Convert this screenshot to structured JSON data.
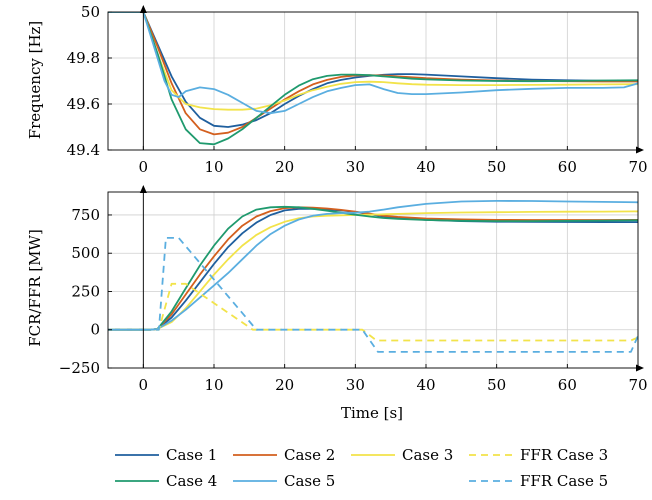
{
  "chart_data": [
    {
      "type": "line",
      "ylabel": "Frequency [Hz]",
      "xlabel": "",
      "xlim": [
        -5,
        70
      ],
      "ylim": [
        49.4,
        50
      ],
      "xticks": [
        0,
        10,
        20,
        30,
        40,
        50,
        60,
        70
      ],
      "yticks": [
        49.4,
        49.6,
        49.8,
        50
      ],
      "ytick_labels": [
        "49.4",
        "49.6",
        "49.8",
        "50"
      ],
      "grid": true,
      "series": [
        {
          "name": "Case 1",
          "color": "#1f5f9e",
          "dash": "solid",
          "x": [
            -5,
            0,
            2,
            4,
            6,
            8,
            10,
            12,
            14,
            16,
            18,
            20,
            22,
            24,
            26,
            28,
            30,
            32,
            34,
            36,
            38,
            40,
            45,
            50,
            55,
            60,
            65,
            70
          ],
          "y": [
            50,
            50,
            49.86,
            49.72,
            49.61,
            49.54,
            49.505,
            49.5,
            49.51,
            49.53,
            49.56,
            49.6,
            49.635,
            49.665,
            49.69,
            49.705,
            49.715,
            49.722,
            49.727,
            49.73,
            49.73,
            49.728,
            49.72,
            49.712,
            49.706,
            49.703,
            49.701,
            49.7
          ]
        },
        {
          "name": "Case 2",
          "color": "#d35f1e",
          "dash": "solid",
          "x": [
            -5,
            0,
            2,
            4,
            6,
            8,
            10,
            12,
            14,
            16,
            18,
            20,
            22,
            24,
            26,
            28,
            30,
            32,
            34,
            36,
            38,
            40,
            45,
            50,
            55,
            60,
            65,
            70
          ],
          "y": [
            50,
            50,
            49.85,
            49.69,
            49.56,
            49.49,
            49.468,
            49.475,
            49.5,
            49.54,
            49.58,
            49.62,
            49.655,
            49.685,
            49.705,
            49.718,
            49.724,
            49.725,
            49.724,
            49.72,
            49.716,
            49.712,
            49.706,
            49.702,
            49.7,
            49.699,
            49.698,
            49.698
          ]
        },
        {
          "name": "Case 3",
          "color": "#f2e34a",
          "dash": "solid",
          "x": [
            -5,
            0,
            2,
            4,
            6,
            8,
            10,
            12,
            14,
            16,
            18,
            20,
            22,
            24,
            26,
            28,
            30,
            32,
            34,
            36,
            38,
            40,
            45,
            50,
            55,
            60,
            65,
            70
          ],
          "y": [
            50,
            50,
            49.82,
            49.66,
            49.6,
            49.585,
            49.578,
            49.575,
            49.575,
            49.58,
            49.595,
            49.615,
            49.64,
            49.66,
            49.675,
            49.688,
            49.695,
            49.697,
            49.695,
            49.69,
            49.686,
            49.684,
            49.682,
            49.682,
            49.683,
            49.684,
            49.685,
            49.686
          ]
        },
        {
          "name": "Case 4",
          "color": "#1f9a6e",
          "dash": "solid",
          "x": [
            -5,
            0,
            2,
            4,
            6,
            8,
            10,
            12,
            14,
            16,
            18,
            20,
            22,
            24,
            26,
            28,
            30,
            32,
            34,
            36,
            38,
            40,
            45,
            50,
            55,
            60,
            65,
            70
          ],
          "y": [
            50,
            50,
            49.82,
            49.62,
            49.49,
            49.43,
            49.425,
            49.45,
            49.49,
            49.54,
            49.59,
            49.64,
            49.68,
            49.708,
            49.722,
            49.728,
            49.728,
            49.725,
            49.72,
            49.715,
            49.71,
            49.707,
            49.702,
            49.7,
            49.699,
            49.7,
            49.702,
            49.703
          ]
        },
        {
          "name": "Case 5",
          "color": "#5aaee0",
          "dash": "solid",
          "x": [
            -5,
            0,
            2,
            3,
            4,
            5,
            6,
            8,
            10,
            12,
            14,
            16,
            18,
            20,
            22,
            24,
            26,
            28,
            30,
            32,
            34,
            36,
            38,
            40,
            45,
            50,
            55,
            60,
            65,
            68,
            70
          ],
          "y": [
            50,
            50,
            49.8,
            49.7,
            49.64,
            49.63,
            49.655,
            49.672,
            49.665,
            49.64,
            49.605,
            49.57,
            49.56,
            49.57,
            49.6,
            49.63,
            49.655,
            49.67,
            49.682,
            49.685,
            49.665,
            49.648,
            49.643,
            49.643,
            49.65,
            49.66,
            49.666,
            49.67,
            49.67,
            49.672,
            49.69
          ]
        }
      ]
    },
    {
      "type": "line",
      "ylabel": "FCR/FFR [MW]",
      "xlabel": "Time [s]",
      "xlim": [
        -5,
        70
      ],
      "ylim": [
        -250,
        900
      ],
      "xticks": [
        0,
        10,
        20,
        30,
        40,
        50,
        60,
        70
      ],
      "yticks": [
        -250,
        0,
        250,
        500,
        750
      ],
      "ytick_labels": [
        "−250",
        "0",
        "250",
        "500",
        "750"
      ],
      "grid": true,
      "series": [
        {
          "name": "Case 1",
          "color": "#1f5f9e",
          "dash": "solid",
          "x": [
            -5,
            0,
            1,
            2,
            4,
            6,
            8,
            10,
            12,
            14,
            16,
            18,
            20,
            22,
            24,
            26,
            28,
            30,
            32,
            34,
            36,
            40,
            45,
            50,
            55,
            60,
            65,
            70
          ],
          "y": [
            0,
            0,
            0,
            5,
            80,
            190,
            310,
            430,
            540,
            630,
            700,
            750,
            780,
            790,
            790,
            785,
            780,
            770,
            755,
            740,
            730,
            718,
            710,
            706,
            705,
            704,
            703,
            703
          ]
        },
        {
          "name": "Case 2",
          "color": "#d35f1e",
          "dash": "solid",
          "x": [
            -5,
            0,
            1,
            2,
            4,
            6,
            8,
            10,
            12,
            14,
            16,
            18,
            20,
            22,
            24,
            26,
            28,
            30,
            32,
            34,
            36,
            40,
            45,
            50,
            55,
            60,
            65,
            70
          ],
          "y": [
            0,
            0,
            0,
            5,
            100,
            230,
            360,
            480,
            590,
            680,
            740,
            775,
            795,
            800,
            798,
            792,
            783,
            772,
            758,
            745,
            737,
            727,
            721,
            718,
            717,
            717,
            717,
            718
          ]
        },
        {
          "name": "Case 3",
          "color": "#f2e34a",
          "dash": "solid",
          "x": [
            -5,
            0,
            1,
            2,
            4,
            6,
            8,
            10,
            12,
            14,
            16,
            18,
            20,
            22,
            24,
            26,
            28,
            30,
            32,
            34,
            36,
            40,
            45,
            50,
            55,
            60,
            65,
            70
          ],
          "y": [
            0,
            0,
            0,
            5,
            50,
            140,
            250,
            360,
            460,
            550,
            620,
            670,
            705,
            728,
            740,
            745,
            748,
            750,
            752,
            754,
            757,
            762,
            766,
            768,
            770,
            771,
            772,
            773
          ]
        },
        {
          "name": "Case 4",
          "color": "#1f9a6e",
          "dash": "solid",
          "x": [
            -5,
            0,
            1,
            2,
            4,
            6,
            8,
            10,
            12,
            14,
            16,
            18,
            20,
            22,
            24,
            26,
            28,
            30,
            32,
            34,
            36,
            40,
            45,
            50,
            55,
            60,
            65,
            70
          ],
          "y": [
            0,
            0,
            0,
            5,
            120,
            270,
            420,
            550,
            660,
            740,
            785,
            800,
            803,
            800,
            790,
            778,
            765,
            752,
            740,
            730,
            724,
            717,
            712,
            710,
            710,
            711,
            713,
            715
          ]
        },
        {
          "name": "Case 5",
          "color": "#5aaee0",
          "dash": "solid",
          "x": [
            -5,
            0,
            1,
            2,
            4,
            6,
            8,
            10,
            12,
            14,
            16,
            18,
            20,
            22,
            24,
            26,
            28,
            30,
            32,
            34,
            36,
            40,
            45,
            50,
            55,
            60,
            65,
            70
          ],
          "y": [
            0,
            0,
            0,
            5,
            60,
            130,
            210,
            290,
            370,
            460,
            550,
            625,
            680,
            720,
            745,
            757,
            762,
            765,
            772,
            785,
            800,
            822,
            838,
            842,
            841,
            838,
            835,
            833
          ]
        },
        {
          "name": "FFR Case 3",
          "color": "#f2e34a",
          "dash": "dashed",
          "x": [
            -5,
            2.2,
            4,
            6,
            15.5,
            31,
            33,
            69,
            70
          ],
          "y": [
            0,
            0,
            300,
            300,
            0,
            0,
            -70,
            -70,
            -50
          ]
        },
        {
          "name": "FFR Case 5",
          "color": "#5aaee0",
          "dash": "dashed",
          "x": [
            -5,
            2.2,
            3.2,
            5,
            16,
            31,
            33.2,
            69,
            70
          ],
          "y": [
            0,
            0,
            600,
            600,
            0,
            0,
            -145,
            -145,
            -40
          ]
        }
      ]
    }
  ],
  "legend": {
    "placement": "bottom",
    "entries": [
      {
        "label": "Case 1",
        "color": "#1f5f9e",
        "dash": "solid"
      },
      {
        "label": "Case 2",
        "color": "#d35f1e",
        "dash": "solid"
      },
      {
        "label": "Case 3",
        "color": "#f2e34a",
        "dash": "solid"
      },
      {
        "label": "FFR Case 3",
        "color": "#f2e34a",
        "dash": "dashed"
      },
      {
        "label": "Case 4",
        "color": "#1f9a6e",
        "dash": "solid"
      },
      {
        "label": "Case 5",
        "color": "#5aaee0",
        "dash": "solid"
      },
      {
        "label": "FFR Case 5",
        "color": "#5aaee0",
        "dash": "dashed"
      }
    ]
  }
}
